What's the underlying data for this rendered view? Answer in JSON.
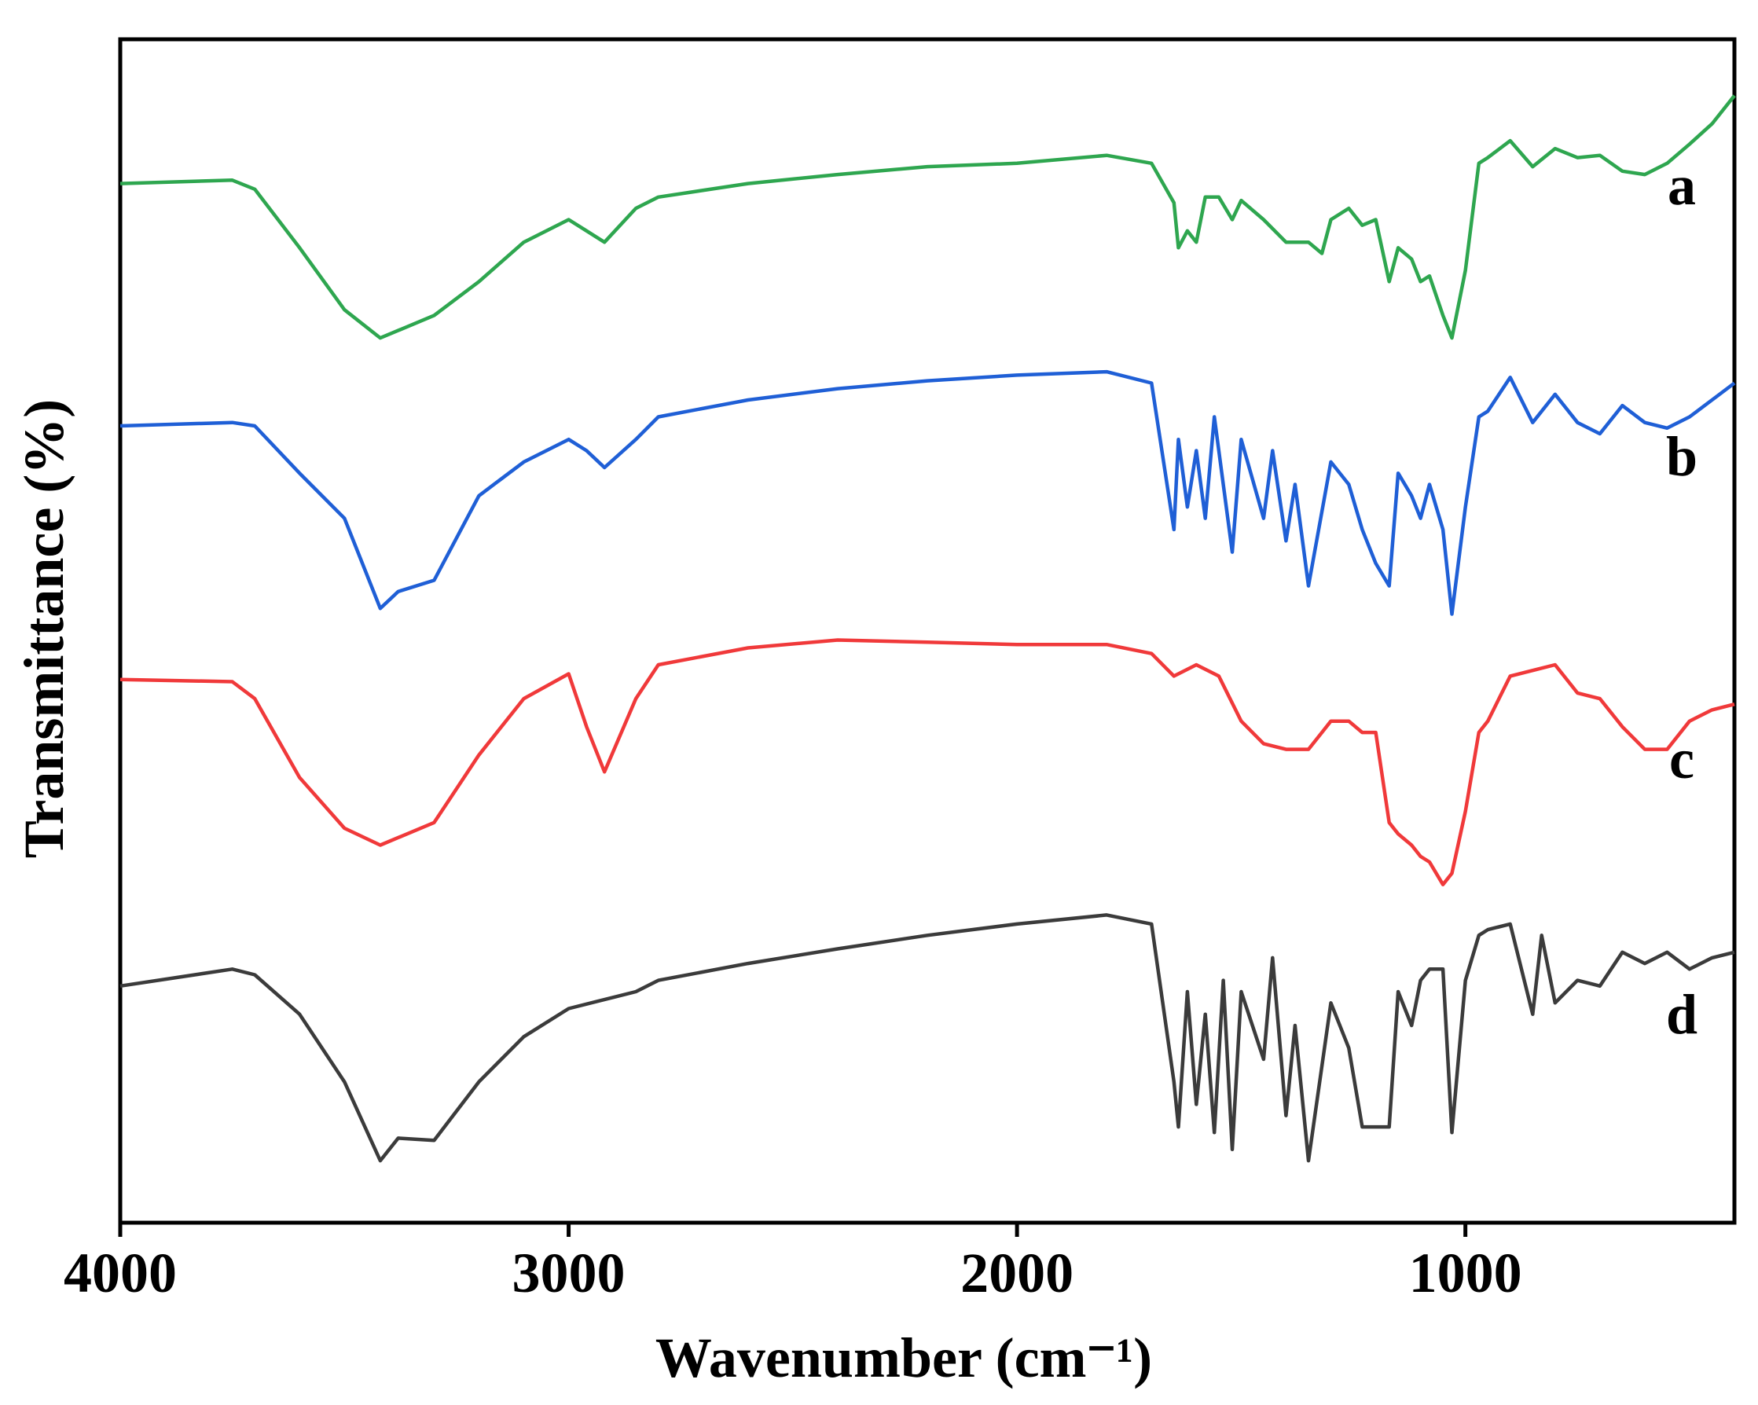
{
  "chart_data": {
    "type": "line",
    "xlabel": "Wavenumber (cm⁻¹)",
    "ylabel": "Transmittance (%)",
    "xlim": [
      4000,
      400
    ],
    "xticks": [
      4000,
      3000,
      2000,
      1000
    ],
    "ylim": [
      0,
      105
    ],
    "series": [
      {
        "name": "a",
        "color": "#2ea64f",
        "x": [
          4000,
          3750,
          3700,
          3600,
          3500,
          3420,
          3300,
          3200,
          3100,
          3000,
          2960,
          2920,
          2850,
          2800,
          2600,
          2400,
          2200,
          2000,
          1800,
          1700,
          1650,
          1640,
          1620,
          1600,
          1580,
          1550,
          1520,
          1500,
          1450,
          1400,
          1350,
          1320,
          1300,
          1260,
          1230,
          1200,
          1170,
          1150,
          1120,
          1100,
          1080,
          1050,
          1030,
          1000,
          970,
          950,
          900,
          850,
          800,
          750,
          700,
          650,
          600,
          550,
          500,
          450,
          400
        ],
        "values": [
          92.2,
          92.5,
          91.7,
          86.5,
          81,
          78.5,
          80.5,
          83.5,
          87,
          89,
          88,
          87,
          90,
          91,
          92.2,
          93,
          93.7,
          94,
          94.7,
          94,
          90.5,
          86.5,
          88,
          87,
          91,
          91,
          89,
          90.7,
          89,
          87,
          87,
          86,
          89,
          90,
          88.5,
          89,
          83.5,
          86.5,
          85.5,
          83.5,
          84,
          80.5,
          78.5,
          84.5,
          94,
          94.5,
          96,
          93.7,
          95.3,
          94.5,
          94.7,
          93.3,
          93,
          94,
          95.7,
          97.5,
          100
        ]
      },
      {
        "name": "b",
        "color": "#1f5fd6",
        "x": [
          4000,
          3750,
          3700,
          3600,
          3500,
          3420,
          3380,
          3300,
          3200,
          3100,
          3000,
          2960,
          2920,
          2850,
          2800,
          2600,
          2400,
          2200,
          2000,
          1800,
          1700,
          1650,
          1640,
          1620,
          1600,
          1580,
          1560,
          1520,
          1500,
          1450,
          1430,
          1400,
          1380,
          1350,
          1300,
          1260,
          1230,
          1200,
          1170,
          1150,
          1120,
          1100,
          1080,
          1050,
          1030,
          1000,
          970,
          950,
          900,
          850,
          800,
          750,
          700,
          650,
          600,
          550,
          500,
          450,
          400
        ],
        "values": [
          70.7,
          71,
          70.7,
          66.5,
          62.5,
          54.5,
          56,
          57,
          64.5,
          67.5,
          69.5,
          68.5,
          67,
          69.5,
          71.5,
          73,
          74,
          74.7,
          75.2,
          75.5,
          74.5,
          61.5,
          69.5,
          63.5,
          68.5,
          62.5,
          71.5,
          59.5,
          69.5,
          62.5,
          68.5,
          60.5,
          65.5,
          56.5,
          67.5,
          65.5,
          61.5,
          58.5,
          56.5,
          66.5,
          64.5,
          62.5,
          65.5,
          61.5,
          54,
          63.5,
          71.5,
          72,
          75,
          71,
          73.5,
          71,
          70,
          72.5,
          71,
          70.5,
          71.5,
          73,
          74.5
        ]
      },
      {
        "name": "c",
        "color": "#f0393a",
        "x": [
          4000,
          3750,
          3700,
          3600,
          3500,
          3420,
          3300,
          3200,
          3100,
          3000,
          2960,
          2920,
          2850,
          2800,
          2600,
          2400,
          2200,
          2000,
          1800,
          1700,
          1650,
          1600,
          1550,
          1500,
          1450,
          1400,
          1350,
          1320,
          1300,
          1260,
          1230,
          1200,
          1170,
          1150,
          1120,
          1100,
          1080,
          1050,
          1030,
          1000,
          970,
          950,
          900,
          850,
          800,
          750,
          700,
          650,
          600,
          550,
          500,
          450,
          400
        ],
        "values": [
          48.2,
          48,
          46.5,
          39.5,
          35,
          33.5,
          35.5,
          41.5,
          46.5,
          48.7,
          44,
          40,
          46.5,
          49.5,
          51,
          51.7,
          51.5,
          51.3,
          51.3,
          50.5,
          48.5,
          49.5,
          48.5,
          44.5,
          42.5,
          42,
          42,
          43.5,
          44.5,
          44.5,
          43.5,
          43.5,
          35.5,
          34.5,
          33.5,
          32.5,
          32,
          30,
          31,
          36.5,
          43.5,
          44.5,
          48.5,
          49,
          49.5,
          47,
          46.5,
          44,
          42,
          42,
          44.5,
          45.5,
          46
        ]
      },
      {
        "name": "d",
        "color": "#3b3b3b",
        "x": [
          4000,
          3750,
          3700,
          3600,
          3500,
          3420,
          3380,
          3300,
          3200,
          3100,
          3000,
          2850,
          2800,
          2600,
          2400,
          2200,
          2000,
          1800,
          1700,
          1650,
          1640,
          1620,
          1600,
          1580,
          1560,
          1540,
          1520,
          1500,
          1450,
          1430,
          1400,
          1380,
          1350,
          1300,
          1260,
          1230,
          1200,
          1170,
          1150,
          1120,
          1100,
          1080,
          1050,
          1030,
          1000,
          970,
          950,
          900,
          850,
          830,
          800,
          750,
          700,
          650,
          600,
          550,
          500,
          450,
          400
        ],
        "values": [
          21,
          22.5,
          22,
          18.5,
          12.5,
          5.5,
          7.5,
          7.3,
          12.5,
          16.5,
          19,
          20.5,
          21.5,
          23,
          24.3,
          25.5,
          26.5,
          27.3,
          26.5,
          12.5,
          8.5,
          20.5,
          10.5,
          18.5,
          8,
          21.5,
          6.5,
          20.5,
          14.5,
          23.5,
          9.5,
          17.5,
          5.5,
          19.5,
          15.5,
          8.5,
          8.5,
          8.5,
          20.5,
          17.5,
          21.5,
          22.5,
          22.5,
          8,
          21.5,
          25.5,
          26,
          26.5,
          18.5,
          25.5,
          19.5,
          21.5,
          21,
          24,
          23,
          24,
          22.5,
          23.5,
          24
        ]
      }
    ]
  }
}
